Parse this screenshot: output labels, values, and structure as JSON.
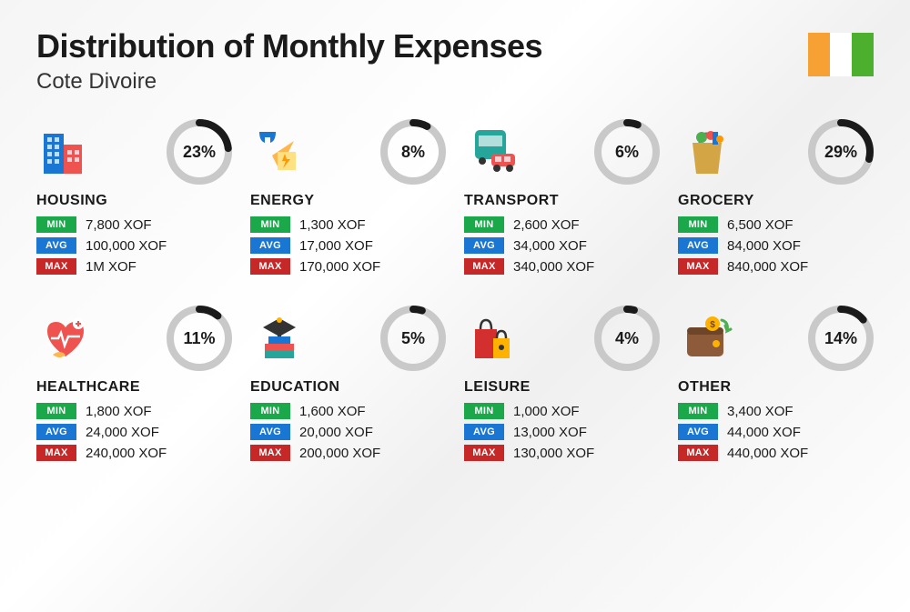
{
  "title": "Distribution of Monthly Expenses",
  "subtitle": "Cote Divoire",
  "flag_colors": [
    "#f7a034",
    "#ffffff",
    "#4caf2e"
  ],
  "badge_labels": {
    "min": "MIN",
    "avg": "AVG",
    "max": "MAX"
  },
  "badge_colors": {
    "min": "#1aa84a",
    "avg": "#1976d2",
    "max": "#c62828"
  },
  "ring": {
    "size": 72,
    "stroke": 8,
    "track_color": "#c9c9c9",
    "fill_color": "#1a1a1a"
  },
  "categories": [
    {
      "key": "housing",
      "label": "HOUSING",
      "pct": 23,
      "pct_text": "23%",
      "min": "7,800 XOF",
      "avg": "100,000 XOF",
      "max": "1M XOF"
    },
    {
      "key": "energy",
      "label": "ENERGY",
      "pct": 8,
      "pct_text": "8%",
      "min": "1,300 XOF",
      "avg": "17,000 XOF",
      "max": "170,000 XOF"
    },
    {
      "key": "transport",
      "label": "TRANSPORT",
      "pct": 6,
      "pct_text": "6%",
      "min": "2,600 XOF",
      "avg": "34,000 XOF",
      "max": "340,000 XOF"
    },
    {
      "key": "grocery",
      "label": "GROCERY",
      "pct": 29,
      "pct_text": "29%",
      "min": "6,500 XOF",
      "avg": "84,000 XOF",
      "max": "840,000 XOF"
    },
    {
      "key": "healthcare",
      "label": "HEALTHCARE",
      "pct": 11,
      "pct_text": "11%",
      "min": "1,800 XOF",
      "avg": "24,000 XOF",
      "max": "240,000 XOF"
    },
    {
      "key": "education",
      "label": "EDUCATION",
      "pct": 5,
      "pct_text": "5%",
      "min": "1,600 XOF",
      "avg": "20,000 XOF",
      "max": "200,000 XOF"
    },
    {
      "key": "leisure",
      "label": "LEISURE",
      "pct": 4,
      "pct_text": "4%",
      "min": "1,000 XOF",
      "avg": "13,000 XOF",
      "max": "130,000 XOF"
    },
    {
      "key": "other",
      "label": "OTHER",
      "pct": 14,
      "pct_text": "14%",
      "min": "3,400 XOF",
      "avg": "44,000 XOF",
      "max": "440,000 XOF"
    }
  ]
}
